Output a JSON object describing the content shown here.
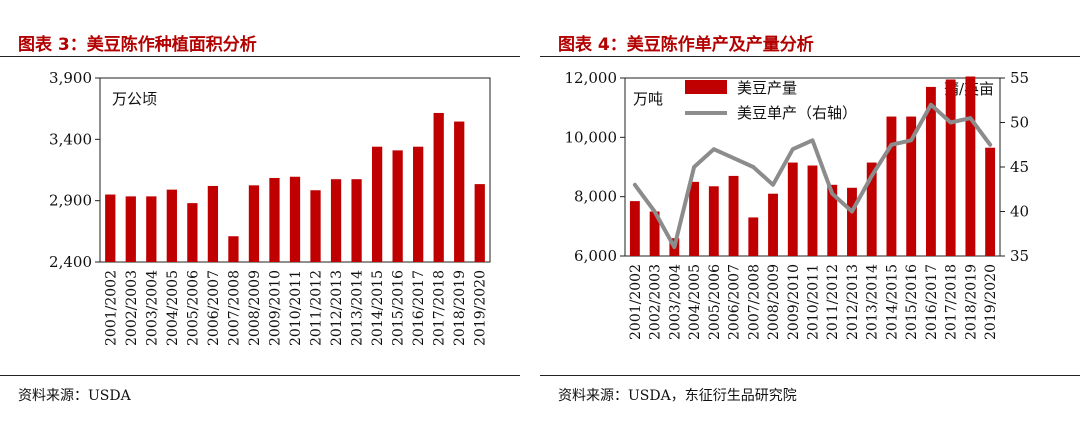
{
  "charts": [
    {
      "figure_title": "图表 3：美豆陈作种植面积分析",
      "source": "资料来源：USDA"
    },
    {
      "figure_title": "图表 4：美豆陈作单产及产量分析",
      "source": "资料来源：USDA，东征衍生品研究院"
    }
  ],
  "chart_data": [
    {
      "type": "bar",
      "title": "图表 3：美豆陈作种植面积分析",
      "ylabel": "万公顷",
      "ylim": [
        2400,
        3900
      ],
      "yticks": [
        2400,
        2900,
        3400,
        3900
      ],
      "ytick_labels": [
        "2,400",
        "2,900",
        "3,400",
        "3,900"
      ],
      "categories": [
        "2001/2002",
        "2002/2003",
        "2003/2004",
        "2004/2005",
        "2005/2006",
        "2006/2007",
        "2007/2008",
        "2008/2009",
        "2009/2010",
        "2010/2011",
        "2011/2012",
        "2012/2013",
        "2013/2014",
        "2014/2015",
        "2015/2016",
        "2016/2017",
        "2017/2018",
        "2018/2019",
        "2019/2020"
      ],
      "values": [
        2950,
        2935,
        2935,
        2990,
        2880,
        3020,
        2610,
        3025,
        3085,
        3095,
        2985,
        3075,
        3075,
        3340,
        3310,
        3340,
        3615,
        3545,
        3035
      ],
      "color": "#c00000",
      "grid": false
    },
    {
      "type": "bar+line",
      "title": "图表 4：美豆陈作单产及产量分析",
      "categories": [
        "2001/2002",
        "2002/2003",
        "2003/2004",
        "2004/2005",
        "2005/2006",
        "2006/2007",
        "2007/2008",
        "2008/2009",
        "2009/2010",
        "2010/2011",
        "2011/2012",
        "2012/2013",
        "2013/2014",
        "2014/2015",
        "2015/2016",
        "2016/2017",
        "2017/2018",
        "2018/2019",
        "2019/2020"
      ],
      "ylabel_left": "万吨",
      "ylabel_right": "蒲/英亩",
      "ylim_left": [
        6000,
        12000
      ],
      "yticks_left": [
        6000,
        8000,
        10000,
        12000
      ],
      "ytick_labels_left": [
        "6,000",
        "8,000",
        "10,000",
        "12,000"
      ],
      "ylim_right": [
        35,
        55
      ],
      "yticks_right": [
        35,
        40,
        45,
        50,
        55
      ],
      "ytick_labels_right": [
        "35",
        "40",
        "45",
        "50",
        "55"
      ],
      "legend_position": "top-left",
      "series": [
        {
          "name": "美豆产量",
          "type": "bar",
          "axis": "left",
          "color": "#c00000",
          "values": [
            7850,
            7500,
            6600,
            8500,
            8350,
            8700,
            7300,
            8100,
            9150,
            9050,
            8400,
            8300,
            9150,
            10700,
            10700,
            11700,
            11950,
            12050,
            9650
          ]
        },
        {
          "name": "美豆单产（右轴）",
          "type": "line",
          "axis": "right",
          "color": "#8c8c8c",
          "values": [
            43,
            40,
            36,
            45,
            47,
            46,
            45,
            43,
            47,
            48,
            42,
            40,
            44,
            47.5,
            48,
            52,
            50,
            50.5,
            47.5
          ]
        }
      ],
      "grid": false
    }
  ]
}
